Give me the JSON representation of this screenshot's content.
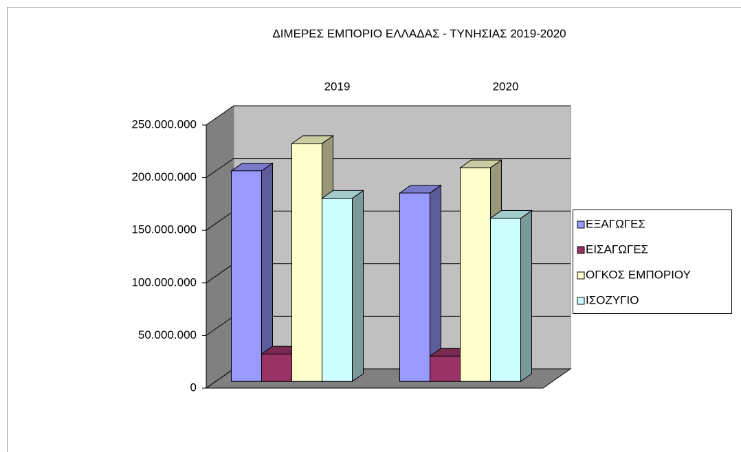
{
  "chart_data": {
    "type": "bar3d",
    "title": "ΔΙΜΕΡΕΣ ΕΜΠΟΡΙΟ ΕΛΛΑΔΑΣ - ΤΥΝΗΣΙΑΣ 2019-2020",
    "categories": [
      "2019",
      "2020"
    ],
    "series": [
      {
        "name": "ΕΞΑΓΩΓΕΣ",
        "color": "#9999ff",
        "values": [
          200000000,
          179000000
        ]
      },
      {
        "name": "ΕΙΣΑΓΩΓΕΣ",
        "color": "#993366",
        "values": [
          26000000,
          24000000
        ]
      },
      {
        "name": "ΟΓΚΟΣ ΕΜΠΟΡΙΟΥ",
        "color": "#ffffcc",
        "values": [
          226000000,
          203000000
        ]
      },
      {
        "name": "ΙΣΟΖΥΓΙΟ",
        "color": "#ccffff",
        "values": [
          174000000,
          155000000
        ]
      }
    ],
    "ylim": [
      0,
      250000000
    ],
    "yticks": [
      {
        "value": 0,
        "label": "0"
      },
      {
        "value": 50000000,
        "label": "50.000.000"
      },
      {
        "value": 100000000,
        "label": "100.000.000"
      },
      {
        "value": 150000000,
        "label": "150.000.000"
      },
      {
        "value": 200000000,
        "label": "200.000.000"
      },
      {
        "value": 250000000,
        "label": "250.000.000"
      }
    ],
    "grid": true,
    "legend": "right"
  }
}
